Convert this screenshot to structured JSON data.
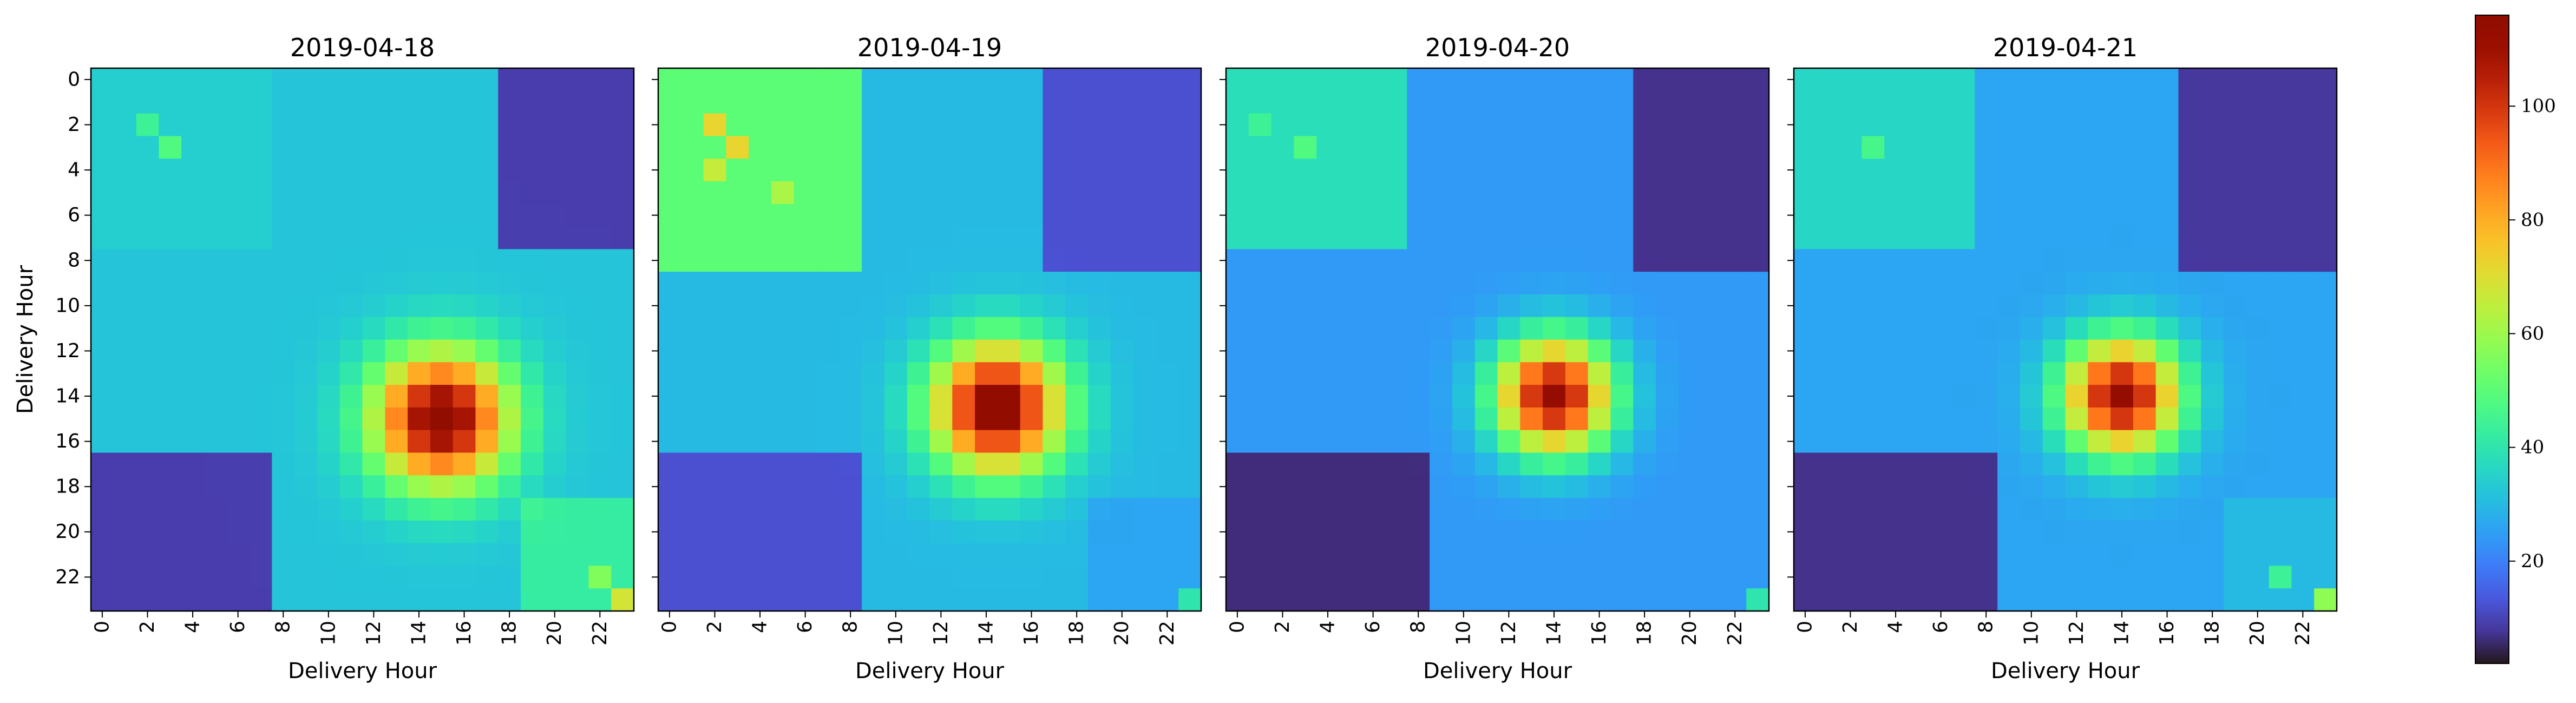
{
  "chart_data": {
    "type": "heatmap",
    "colormap": "turbo",
    "value_range": [
      2,
      116
    ],
    "axis_ticks": [
      0,
      2,
      4,
      6,
      8,
      10,
      12,
      14,
      16,
      18,
      20,
      22
    ],
    "colorbar": {
      "ticks": [
        20,
        40,
        60,
        80,
        100
      ],
      "range": [
        2,
        116
      ]
    },
    "panels": [
      {
        "title": "2019-04-18",
        "xlabel": "Delivery Hour",
        "ylabel": "Delivery Hour",
        "size": 24,
        "base": 32,
        "peak": {
          "center": [
            15,
            15
          ],
          "amplitude": 85,
          "radius": 2.1
        },
        "blocks": [
          {
            "r0": 0,
            "r1": 7,
            "c0": 0,
            "c1": 7,
            "value": 34
          },
          {
            "r0": 17,
            "r1": 23,
            "c0": 0,
            "c1": 7,
            "value": 9
          },
          {
            "r0": 0,
            "r1": 7,
            "c0": 18,
            "c1": 23,
            "value": 9
          },
          {
            "r0": 19,
            "r1": 23,
            "c0": 19,
            "c1": 23,
            "value": 42
          }
        ],
        "spots": [
          {
            "r": 3,
            "c": 3,
            "value": 48
          },
          {
            "r": 2,
            "c": 2,
            "value": 44
          },
          {
            "r": 23,
            "c": 23,
            "value": 68
          },
          {
            "r": 22,
            "c": 22,
            "value": 56
          }
        ]
      },
      {
        "title": "2019-04-19",
        "xlabel": "Delivery Hour",
        "ylabel": "",
        "size": 24,
        "base": 30,
        "peak": {
          "center": [
            14.5,
            14.5
          ],
          "amplitude": 88,
          "radius": 2.0
        },
        "blocks": [
          {
            "r0": 0,
            "r1": 8,
            "c0": 0,
            "c1": 8,
            "value": 50
          },
          {
            "r0": 17,
            "r1": 23,
            "c0": 0,
            "c1": 8,
            "value": 12
          },
          {
            "r0": 0,
            "r1": 8,
            "c0": 17,
            "c1": 23,
            "value": 12
          },
          {
            "r0": 19,
            "r1": 23,
            "c0": 19,
            "c1": 23,
            "value": 26
          }
        ],
        "spots": [
          {
            "r": 2,
            "c": 2,
            "value": 72
          },
          {
            "r": 3,
            "c": 3,
            "value": 72
          },
          {
            "r": 4,
            "c": 2,
            "value": 66
          },
          {
            "r": 5,
            "c": 5,
            "value": 62
          },
          {
            "r": 23,
            "c": 23,
            "value": 40
          }
        ]
      },
      {
        "title": "2019-04-20",
        "xlabel": "Delivery Hour",
        "ylabel": "",
        "size": 24,
        "base": 24,
        "peak": {
          "center": [
            14,
            14
          ],
          "amplitude": 88,
          "radius": 1.8
        },
        "blocks": [
          {
            "r0": 0,
            "r1": 7,
            "c0": 0,
            "c1": 7,
            "value": 38
          },
          {
            "r0": 17,
            "r1": 23,
            "c0": 0,
            "c1": 8,
            "value": 6
          },
          {
            "r0": 0,
            "r1": 8,
            "c0": 18,
            "c1": 23,
            "value": 7
          },
          {
            "r0": 19,
            "r1": 23,
            "c0": 19,
            "c1": 23,
            "value": 24
          }
        ],
        "spots": [
          {
            "r": 3,
            "c": 3,
            "value": 48
          },
          {
            "r": 2,
            "c": 1,
            "value": 44
          },
          {
            "r": 23,
            "c": 23,
            "value": 40
          }
        ]
      },
      {
        "title": "2019-04-21",
        "xlabel": "Delivery Hour",
        "ylabel": "",
        "size": 24,
        "base": 26,
        "peak": {
          "center": [
            14,
            14
          ],
          "amplitude": 86,
          "radius": 1.8
        },
        "blocks": [
          {
            "r0": 0,
            "r1": 7,
            "c0": 0,
            "c1": 7,
            "value": 36
          },
          {
            "r0": 17,
            "r1": 23,
            "c0": 0,
            "c1": 8,
            "value": 7
          },
          {
            "r0": 0,
            "r1": 8,
            "c0": 17,
            "c1": 23,
            "value": 8
          },
          {
            "r0": 19,
            "r1": 23,
            "c0": 19,
            "c1": 23,
            "value": 30
          }
        ],
        "spots": [
          {
            "r": 3,
            "c": 3,
            "value": 46
          },
          {
            "r": 23,
            "c": 23,
            "value": 58
          },
          {
            "r": 22,
            "c": 21,
            "value": 44
          }
        ]
      }
    ]
  }
}
